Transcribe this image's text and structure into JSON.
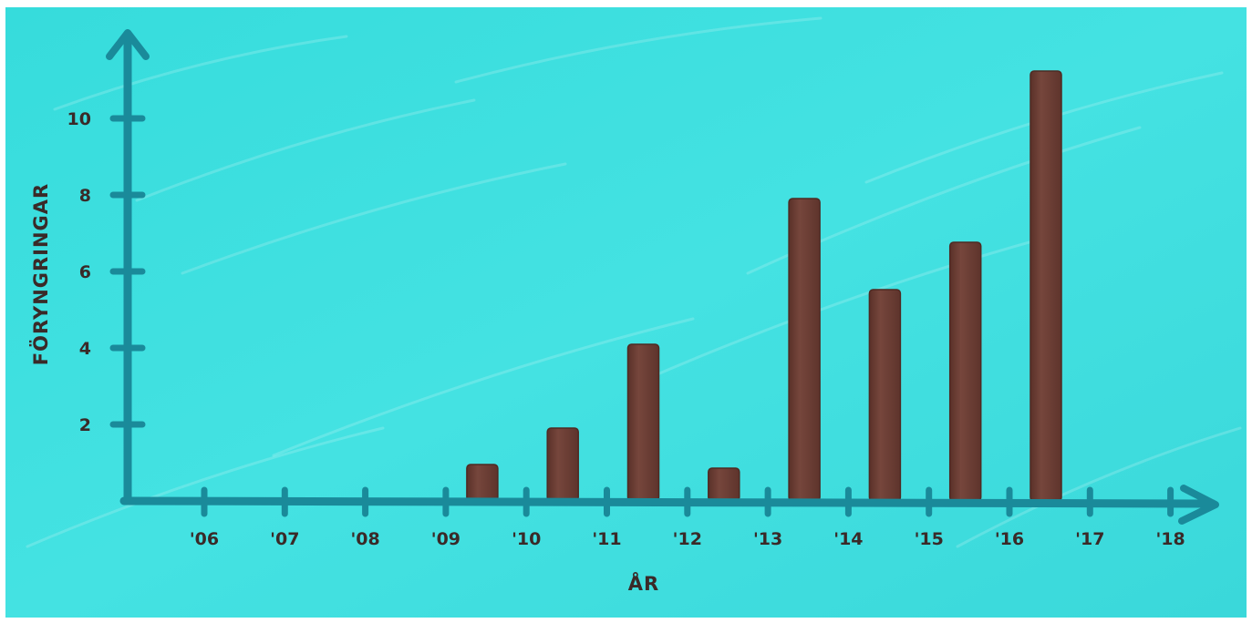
{
  "chart_data": {
    "type": "bar",
    "title": "",
    "xlabel": "ÅR",
    "ylabel": "FÖRYNGRINGAR",
    "categories": [
      "'06",
      "'07",
      "'08",
      "'09",
      "'10",
      "'11",
      "'12",
      "'13",
      "'14",
      "'15",
      "'16",
      "'17",
      "'18"
    ],
    "values": [
      0,
      0,
      0,
      1,
      2,
      4.3,
      0.9,
      8.3,
      5.8,
      7.1,
      11.8,
      0,
      0
    ],
    "yticks": [
      2,
      4,
      6,
      8,
      10
    ],
    "ylim": [
      0,
      12
    ],
    "grid": false,
    "legend": "none",
    "colors": {
      "background": "#3fdede",
      "axis": "#1a8a9a",
      "bar": "#6b3e35",
      "text": "#3a2a28"
    }
  }
}
